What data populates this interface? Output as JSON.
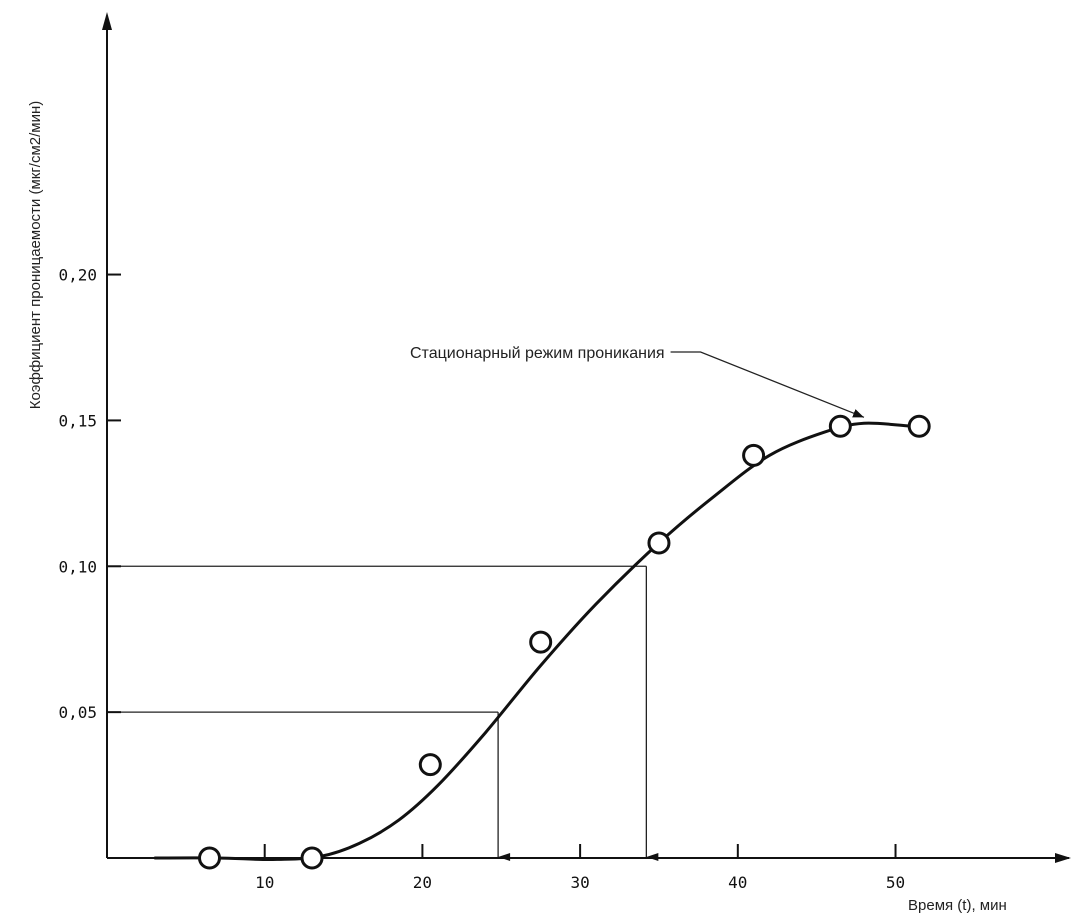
{
  "chart_data": {
    "type": "line",
    "title": "",
    "xlabel": "Время (t),  мин",
    "ylabel": "Коэффициент проницаемости (мкг/см2/мин)",
    "xlim": [
      0,
      61
    ],
    "ylim": [
      0,
      0.29
    ],
    "x_ticks": [
      10,
      20,
      30,
      40,
      50
    ],
    "x_tick_labels": [
      "10",
      "20",
      "30",
      "40",
      "50"
    ],
    "y_ticks": [
      0.05,
      0.1,
      0.15,
      0.2
    ],
    "y_tick_labels": [
      "0,05",
      "0,10",
      "0,15",
      "0,20"
    ],
    "grid": false,
    "series": [
      {
        "markers": "open-circle",
        "x": [
          6.5,
          13,
          20.5,
          27.5,
          35,
          41,
          46.5,
          51.5
        ],
        "y": [
          0.0,
          0.0,
          0.032,
          0.074,
          0.108,
          0.138,
          0.148,
          0.148
        ]
      }
    ],
    "curve": {
      "x": [
        3,
        7,
        10.5,
        13.5,
        16,
        18.5,
        21,
        24,
        27.5,
        31,
        35,
        38.5,
        42,
        45.5,
        48,
        51
      ],
      "y": [
        0.0,
        0.0,
        -0.0005,
        0.0005,
        0.005,
        0.013,
        0.025,
        0.043,
        0.066,
        0.087,
        0.108,
        0.124,
        0.138,
        0.146,
        0.149,
        0.148
      ]
    },
    "guides": [
      {
        "y": 0.05,
        "x": 24.8
      },
      {
        "y": 0.1,
        "x": 34.2
      }
    ],
    "annotations": [
      {
        "text": "Стационарный режим проникания",
        "target_x": 48,
        "target_y": 0.149
      }
    ]
  }
}
